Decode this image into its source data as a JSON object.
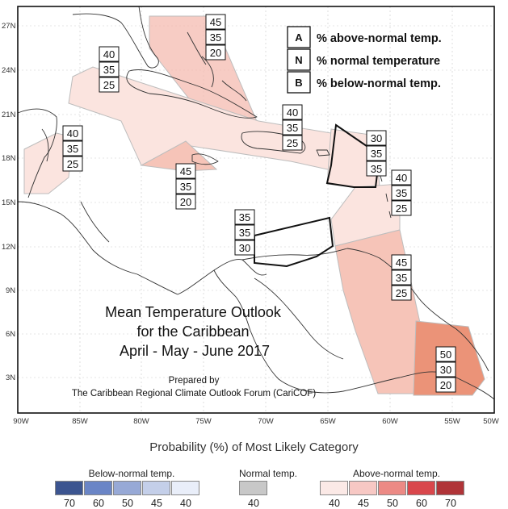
{
  "map": {
    "title_lines": [
      "Mean Temperature Outlook",
      "for the Caribbean",
      "April - May - June 2017"
    ],
    "prepared_by": "Prepared by",
    "forum": "The Caribbean Regional Climate Outlook Forum (CariCOF)",
    "lat_ticks": [
      "27N",
      "24N",
      "21N",
      "18N",
      "15N",
      "12N",
      "9N",
      "6N",
      "3N"
    ],
    "lon_ticks": [
      "90W",
      "85W",
      "80W",
      "75W",
      "70W",
      "65W",
      "60W",
      "55W",
      "50W"
    ],
    "legend": [
      {
        "key": "A",
        "text": "% above-normal temp."
      },
      {
        "key": "N",
        "text": "% normal temperature"
      },
      {
        "key": "B",
        "text": "% below-normal temp."
      }
    ],
    "boxes": [
      {
        "region": "bahamas",
        "values": [
          "45",
          "35",
          "20"
        ]
      },
      {
        "region": "cuba",
        "values": [
          "40",
          "35",
          "25"
        ]
      },
      {
        "region": "belize",
        "values": [
          "40",
          "35",
          "25"
        ]
      },
      {
        "region": "jamaica",
        "values": [
          "45",
          "35",
          "20"
        ]
      },
      {
        "region": "hispaniola",
        "values": [
          "40",
          "35",
          "25"
        ]
      },
      {
        "region": "leeward-islands",
        "values": [
          "30",
          "35",
          "35"
        ]
      },
      {
        "region": "windward-islands",
        "values": [
          "40",
          "35",
          "25"
        ]
      },
      {
        "region": "abc-islands",
        "values": [
          "35",
          "35",
          "30"
        ]
      },
      {
        "region": "guyana",
        "values": [
          "45",
          "35",
          "25"
        ]
      },
      {
        "region": "suriname",
        "values": [
          "50",
          "30",
          "20"
        ]
      }
    ]
  },
  "colorbar": {
    "title": "Probability (%) of Most Likely Category",
    "below": {
      "label": "Below-normal temp.",
      "colors": [
        "#3c5590",
        "#6a85c6",
        "#97a9d6",
        "#c4cfe9",
        "#e9eef9"
      ],
      "values": [
        "70",
        "60",
        "50",
        "45",
        "40"
      ]
    },
    "normal": {
      "label": "Normal temp.",
      "colors": [
        "#c8c8c8"
      ],
      "values": [
        "40"
      ]
    },
    "above": {
      "label": "Above-normal temp.",
      "colors": [
        "#fbe9e6",
        "#f7c8c4",
        "#ec8a85",
        "#d9474c",
        "#b03438"
      ],
      "values": [
        "40",
        "45",
        "50",
        "60",
        "70"
      ]
    }
  }
}
